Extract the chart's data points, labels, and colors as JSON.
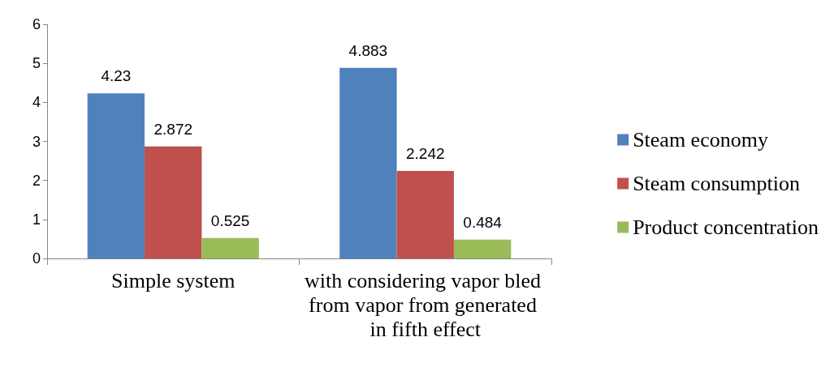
{
  "chart_data": {
    "type": "bar",
    "categories": [
      "Simple system",
      "with considering vapor bled from vapor from generated in fifth effect"
    ],
    "series": [
      {
        "name": "Steam economy",
        "color": "#4f81bd",
        "values": [
          4.23,
          4.883
        ]
      },
      {
        "name": "Steam consumption",
        "color": "#c0504d",
        "values": [
          2.872,
          2.242
        ]
      },
      {
        "name": "Product concentration",
        "color": "#9bbb59",
        "values": [
          0.525,
          0.484
        ]
      }
    ],
    "ylim": [
      0,
      6
    ],
    "yticks": [
      0,
      1,
      2,
      3,
      4,
      5,
      6
    ],
    "grid": false,
    "legend": "right",
    "data_labels": true
  }
}
